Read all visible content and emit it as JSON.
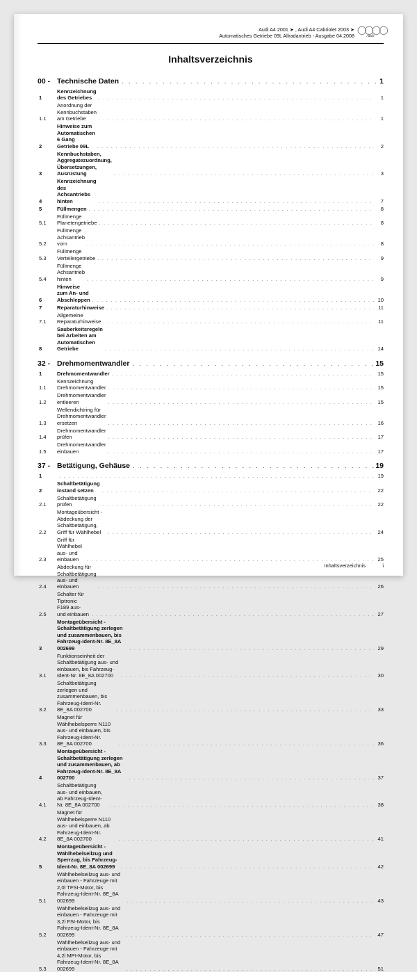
{
  "header": {
    "line1": "Audi A4 2001 ➤ , Audi A4 Cabriolet 2003 ➤",
    "line2": "Automatisches Getriebe 09L Allradantrieb - Ausgabe 04.2008",
    "brand": "Audi"
  },
  "title": "Inhaltsverzeichnis",
  "footer": {
    "label": "Inhaltsverzeichnis",
    "page": "i"
  },
  "sections": [
    {
      "num": "00 -",
      "title": "Technische Daten",
      "page": "1",
      "items": [
        {
          "n": "1",
          "t": "Kennzeichnung des Getriebes",
          "p": "1",
          "b": true
        },
        {
          "n": "1.1",
          "t": "Anordnung der Kennbuchstaben am Getriebe",
          "p": "1"
        },
        {
          "n": "2",
          "t": "Hinweise zum Automatischen 6 Gang Getriebe 09L",
          "p": "2",
          "b": true
        },
        {
          "n": "3",
          "t": "Kennbuchstaben, Aggregatezuordnung, Übersetzungen, Ausrüstung",
          "p": "3",
          "b": true
        },
        {
          "n": "4",
          "t": "Kennzeichnung des Achsantriebs hinten",
          "p": "7",
          "b": true
        },
        {
          "n": "5",
          "t": "Füllmengen",
          "p": "8",
          "b": true
        },
        {
          "n": "5.1",
          "t": "Füllmenge Planetengetriebe",
          "p": "8"
        },
        {
          "n": "5.2",
          "t": "Füllmenge Achsantrieb vorn",
          "p": "8"
        },
        {
          "n": "5.3",
          "t": "Füllmenge Verteilergetriebe",
          "p": "9"
        },
        {
          "n": "5.4",
          "t": "Füllmenge Achsantrieb hinten",
          "p": "9"
        },
        {
          "n": "6",
          "t": "Hinweise zum An- und Abschleppen",
          "p": "10",
          "b": true
        },
        {
          "n": "7",
          "t": "Reparaturhinweise",
          "p": "11",
          "b": true
        },
        {
          "n": "7.1",
          "t": "Allgemeine Reparaturhinweise",
          "p": "11"
        },
        {
          "n": "8",
          "t": "Sauberkeitsregeln bei Arbeiten am Automatischen Getriebe",
          "p": "14",
          "b": true
        }
      ]
    },
    {
      "num": "32 -",
      "title": "Drehmomentwandler",
      "page": "15",
      "items": [
        {
          "n": "1",
          "t": "Drehmomentwandler",
          "p": "15",
          "b": true
        },
        {
          "n": "1.1",
          "t": "Kennzeichnung Drehmomentwandler",
          "p": "15"
        },
        {
          "n": "1.2",
          "t": "Drehmomentwandler entleeren",
          "p": "15"
        },
        {
          "n": "1.3",
          "t": "Wellendichtring für Drehmomentwandler ersetzen",
          "p": "16"
        },
        {
          "n": "1.4",
          "t": "Drehmomentwandler prüfen",
          "p": "17"
        },
        {
          "n": "1.5",
          "t": "Drehmomentwandler einbauen",
          "p": "17"
        }
      ]
    },
    {
      "num": "37 -",
      "title": "Betätigung, Gehäuse",
      "page": "19",
      "items": [
        {
          "n": "1",
          "t": "",
          "p": "19",
          "b": true
        },
        {
          "n": "2",
          "t": "Schaltbetätigung instand setzen",
          "p": "22",
          "b": true
        },
        {
          "n": "2.1",
          "t": "Schaltbetätigung prüfen",
          "p": "22"
        },
        {
          "n": "2.2",
          "t": "Montageübersicht - Abdeckung der Schaltbetätigung, Griff für Wählhebel",
          "p": "24"
        },
        {
          "n": "2.3",
          "t": "Griff für Wählhebel aus- und einbauen",
          "p": "25"
        },
        {
          "n": "2.4",
          "t": "Abdeckung für Schaltbetätigung aus- und einbauen",
          "p": "26"
        },
        {
          "n": "2.5",
          "t": "Schalter für Tiptronic F189 aus- und einbauen",
          "p": "27"
        },
        {
          "n": "3",
          "t": "Montageübersicht - Schaltbetätigung zerlegen und zusammenbauen, bis Fahrzeug-Ident-Nr. 8E_8A 002699",
          "p": "29",
          "b": true
        },
        {
          "n": "3.1",
          "t": "Funktionseinheit der Schaltbetätigung aus- und einbauen, bis Fahrzeug-Ident-Nr. 8E_8A 002700",
          "p": "30"
        },
        {
          "n": "3.2",
          "t": "Schaltbetätigung zerlegen und zusammenbauen, bis Fahrzeug-Ident-Nr. 8E_8A 002700",
          "p": "33"
        },
        {
          "n": "3.3",
          "t": "Magnet für Wählhebelsperre N110 aus- und einbauen, bis Fahrzeug-Ident-Nr. 8E_8A 002700",
          "p": "36"
        },
        {
          "n": "4",
          "t": "Montageübersicht - Schaltbetätigung zerlegen und zusammenbauen, ab Fahrzeug-Ident-Nr. 8E_8A 002700",
          "p": "37",
          "b": true
        },
        {
          "n": "4.1",
          "t": "Schaltbetätigung aus- und einbauen, ab Fahrzeug-Ident-Nr. 8E_8A 002700",
          "p": "38"
        },
        {
          "n": "4.2",
          "t": "Magnet für Wählhebelsperre N110 aus- und einbauen, ab Fahrzeug-Ident-Nr. 8E_8A 002700",
          "p": "41"
        },
        {
          "n": "5",
          "t": "Montageübersicht - Wählhebelseilzug und Sperrzug, bis Fahrzeug-Ident-Nr. 8E_8A 002699",
          "p": "42",
          "b": true
        },
        {
          "n": "5.1",
          "t": "Wählhebelseilzug aus- und einbauen - Fahrzeuge mit 2,0l TFSI-Motor, bis Fahrzeug-Ident-Nr. 8E_8A 002699",
          "p": "43"
        },
        {
          "n": "5.2",
          "t": "Wählhebelseilzug aus- und einbauen - Fahrzeuge mit 3,2l FSI-Motor, bis Fahrzeug-Ident-Nr. 8E_8A 002699",
          "p": "47"
        },
        {
          "n": "5.3",
          "t": "Wählhebelseilzug aus- und einbauen - Fahrzeuge mit 4,2l MPI-Motor, bis Fahrzeug-Ident-Nr. 8E_8A 002699",
          "p": "51"
        }
      ]
    }
  ]
}
